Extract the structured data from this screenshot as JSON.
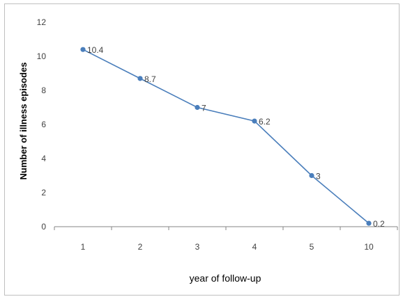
{
  "chart_data": {
    "type": "line",
    "title": "",
    "xlabel": "year of follow-up",
    "ylabel": "Number of illness episodes",
    "categories": [
      "1",
      "2",
      "3",
      "4",
      "5",
      "10"
    ],
    "series": [
      {
        "values": [
          10.4,
          8.7,
          7,
          6.2,
          3,
          0.2
        ],
        "data_labels": [
          "10.4",
          "8.7",
          "7",
          "6.2",
          "3",
          "0.2"
        ],
        "color": "#4a7ebb"
      }
    ],
    "ylim": [
      0,
      12
    ],
    "yticks": [
      0,
      2,
      4,
      6,
      8,
      10,
      12
    ],
    "grid": false,
    "legend": "none",
    "axis_color": "#868686"
  }
}
